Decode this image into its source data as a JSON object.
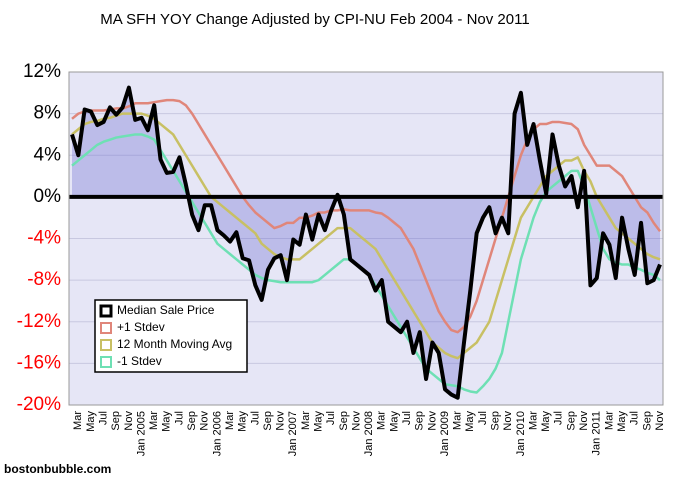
{
  "chart_data": {
    "type": "line",
    "title": "MA SFH YOY Change Adjusted by CPI-NU Feb 2004 - Nov 2011",
    "source": "bostonbubble.com",
    "categories": [
      null,
      "Mar",
      null,
      "May",
      null,
      "Jul",
      null,
      "Sep",
      null,
      "Nov",
      null,
      "Jan 2005",
      null,
      "Mar",
      null,
      "May",
      null,
      "Jul",
      null,
      "Sep",
      null,
      "Nov",
      null,
      "Jan 2006",
      null,
      "Mar",
      null,
      "May",
      null,
      "Jul",
      null,
      "Sep",
      null,
      "Nov",
      null,
      "Jan 2007",
      null,
      "Mar",
      null,
      "May",
      null,
      "Jul",
      null,
      "Sep",
      null,
      "Nov",
      null,
      "Jan 2008",
      null,
      "Mar",
      null,
      "May",
      null,
      "Jul",
      null,
      "Sep",
      null,
      "Nov",
      null,
      "Jan 2009",
      null,
      "Mar",
      null,
      "May",
      null,
      "Jul",
      null,
      "Sep",
      null,
      "Nov",
      null,
      "Jan 2010",
      null,
      "Mar",
      null,
      "May",
      null,
      "Jul",
      null,
      "Sep",
      null,
      "Nov",
      null,
      "Jan 2011",
      null,
      "Mar",
      null,
      "May",
      null,
      "Jul",
      null,
      "Sep",
      null,
      "Nov"
    ],
    "series": [
      {
        "name": "Median Sale Price",
        "color": "#000000",
        "fill": "rgba(110,110,210,0.35)",
        "values": [
          6.0,
          4.0,
          8.4,
          8.2,
          6.9,
          7.2,
          8.6,
          7.9,
          8.6,
          10.5,
          7.4,
          7.6,
          6.4,
          8.8,
          3.6,
          2.3,
          2.4,
          3.8,
          1.2,
          -1.7,
          -3.2,
          -0.8,
          -0.8,
          -3.2,
          -3.7,
          -4.3,
          -3.4,
          -5.9,
          -6.1,
          -8.5,
          -9.9,
          -7.0,
          -5.9,
          -5.6,
          -8.0,
          -4.1,
          -4.6,
          -1.7,
          -4.1,
          -1.7,
          -3.2,
          -1.3,
          0.2,
          -1.7,
          -6.0,
          -6.5,
          -7.0,
          -7.5,
          -9.0,
          -8.0,
          -12.0,
          -12.5,
          -13.0,
          -12.0,
          -15.0,
          -13.0,
          -17.5,
          -14.0,
          -15.0,
          -18.5,
          -19.0,
          -19.3,
          -14.0,
          -9.0,
          -3.5,
          -2.0,
          -1.0,
          -3.5,
          -2.0,
          -3.5,
          8.0,
          10.0,
          5.0,
          7.0,
          3.5,
          0.3,
          6.0,
          3.0,
          1.0,
          2.0,
          -1.0,
          2.5,
          -8.5,
          -7.8,
          -3.5,
          -4.6,
          -7.8,
          -2.0,
          -5.0,
          -7.5,
          -2.5,
          -8.3,
          -8.0,
          -6.5
        ]
      },
      {
        "name": "+1 Stdev",
        "color": "#e0867a",
        "values": [
          7.5,
          8.0,
          8.2,
          8.3,
          8.3,
          8.3,
          8.4,
          8.5,
          8.5,
          8.7,
          9.0,
          9.0,
          9.0,
          9.1,
          9.2,
          9.3,
          9.3,
          9.2,
          8.8,
          8.0,
          7.0,
          6.0,
          5.0,
          4.0,
          3.0,
          2.0,
          1.0,
          0.0,
          -0.8,
          -1.5,
          -2.0,
          -2.5,
          -3.0,
          -2.8,
          -2.5,
          -2.5,
          -2.0,
          -2.0,
          -1.8,
          -1.5,
          -1.5,
          -1.3,
          -1.3,
          -1.2,
          -1.3,
          -1.3,
          -1.3,
          -1.3,
          -1.5,
          -1.6,
          -2.0,
          -2.5,
          -3.0,
          -4.0,
          -5.0,
          -6.5,
          -8.0,
          -9.5,
          -11.0,
          -12.0,
          -12.8,
          -13.0,
          -12.5,
          -11.5,
          -10.0,
          -8.0,
          -6.0,
          -4.0,
          -2.0,
          0.0,
          2.0,
          4.0,
          5.5,
          6.5,
          7.0,
          7.0,
          7.2,
          7.2,
          7.1,
          7.0,
          6.5,
          5.0,
          4.0,
          3.0,
          3.0,
          3.0,
          2.5,
          2.0,
          1.0,
          0.0,
          -1.0,
          -1.5,
          -2.5,
          -3.3
        ]
      },
      {
        "name": "12 Month Moving Avg",
        "color": "#c8c064",
        "values": [
          6.0,
          6.5,
          7.0,
          7.2,
          7.3,
          7.5,
          7.6,
          7.8,
          8.0,
          8.0,
          8.0,
          8.0,
          7.8,
          7.5,
          7.0,
          6.5,
          6.0,
          5.0,
          4.0,
          3.0,
          2.0,
          1.0,
          0.0,
          -0.5,
          -1.0,
          -1.5,
          -2.0,
          -2.5,
          -3.0,
          -3.5,
          -4.5,
          -5.0,
          -5.5,
          -5.8,
          -6.0,
          -6.0,
          -6.0,
          -5.5,
          -5.0,
          -4.5,
          -4.0,
          -3.5,
          -3.0,
          -3.0,
          -3.0,
          -3.5,
          -4.0,
          -4.5,
          -5.0,
          -6.0,
          -7.0,
          -8.0,
          -9.0,
          -10.0,
          -11.0,
          -12.0,
          -13.0,
          -14.0,
          -14.5,
          -15.0,
          -15.3,
          -15.5,
          -15.0,
          -14.5,
          -14.0,
          -13.0,
          -12.0,
          -10.0,
          -8.0,
          -6.0,
          -4.0,
          -2.0,
          -1.0,
          0.0,
          1.0,
          2.0,
          2.5,
          3.0,
          3.5,
          3.5,
          3.8,
          2.5,
          1.5,
          0.0,
          -1.0,
          -2.0,
          -3.0,
          -3.5,
          -4.0,
          -4.5,
          -5.0,
          -5.5,
          -5.8,
          -6.0
        ]
      },
      {
        "name": "-1 Stdev",
        "color": "#6ee0b4",
        "values": [
          3.0,
          3.5,
          4.0,
          4.5,
          5.0,
          5.3,
          5.5,
          5.7,
          5.8,
          5.9,
          6.0,
          6.0,
          5.8,
          5.5,
          4.5,
          3.5,
          2.5,
          1.5,
          0.5,
          -0.5,
          -1.5,
          -2.5,
          -3.5,
          -4.5,
          -5.0,
          -5.5,
          -6.0,
          -6.5,
          -7.0,
          -7.5,
          -7.8,
          -8.0,
          -8.1,
          -8.2,
          -8.2,
          -8.2,
          -8.2,
          -8.2,
          -8.2,
          -8.0,
          -7.5,
          -7.0,
          -6.5,
          -6.0,
          -6.0,
          -6.5,
          -7.0,
          -7.5,
          -8.5,
          -9.5,
          -10.5,
          -11.5,
          -12.5,
          -13.5,
          -14.5,
          -15.5,
          -16.5,
          -17.0,
          -17.5,
          -18.0,
          -18.1,
          -18.2,
          -18.5,
          -18.7,
          -18.8,
          -18.2,
          -17.5,
          -16.5,
          -15.0,
          -12.0,
          -9.0,
          -6.0,
          -4.0,
          -2.0,
          -0.5,
          0.5,
          1.0,
          1.5,
          2.0,
          2.5,
          2.5,
          1.0,
          -1.0,
          -3.0,
          -5.0,
          -6.0,
          -6.3,
          -6.5,
          -6.5,
          -6.8,
          -7.0,
          -7.3,
          -7.5,
          -8.0
        ]
      }
    ],
    "ylim": [
      -20,
      12
    ],
    "yticks": [
      {
        "value": -20,
        "label": "-20%"
      },
      {
        "value": -16,
        "label": "-16%"
      },
      {
        "value": -12,
        "label": "-12%"
      },
      {
        "value": -8,
        "label": "-8%"
      },
      {
        "value": -4,
        "label": "-4%"
      },
      {
        "value": 0,
        "label": "0%"
      },
      {
        "value": 4,
        "label": "4%"
      },
      {
        "value": 8,
        "label": "8%"
      },
      {
        "value": 12,
        "label": "12%"
      }
    ],
    "negative_tick_color": "#ff0000",
    "grid": true,
    "legend": "lower left"
  }
}
